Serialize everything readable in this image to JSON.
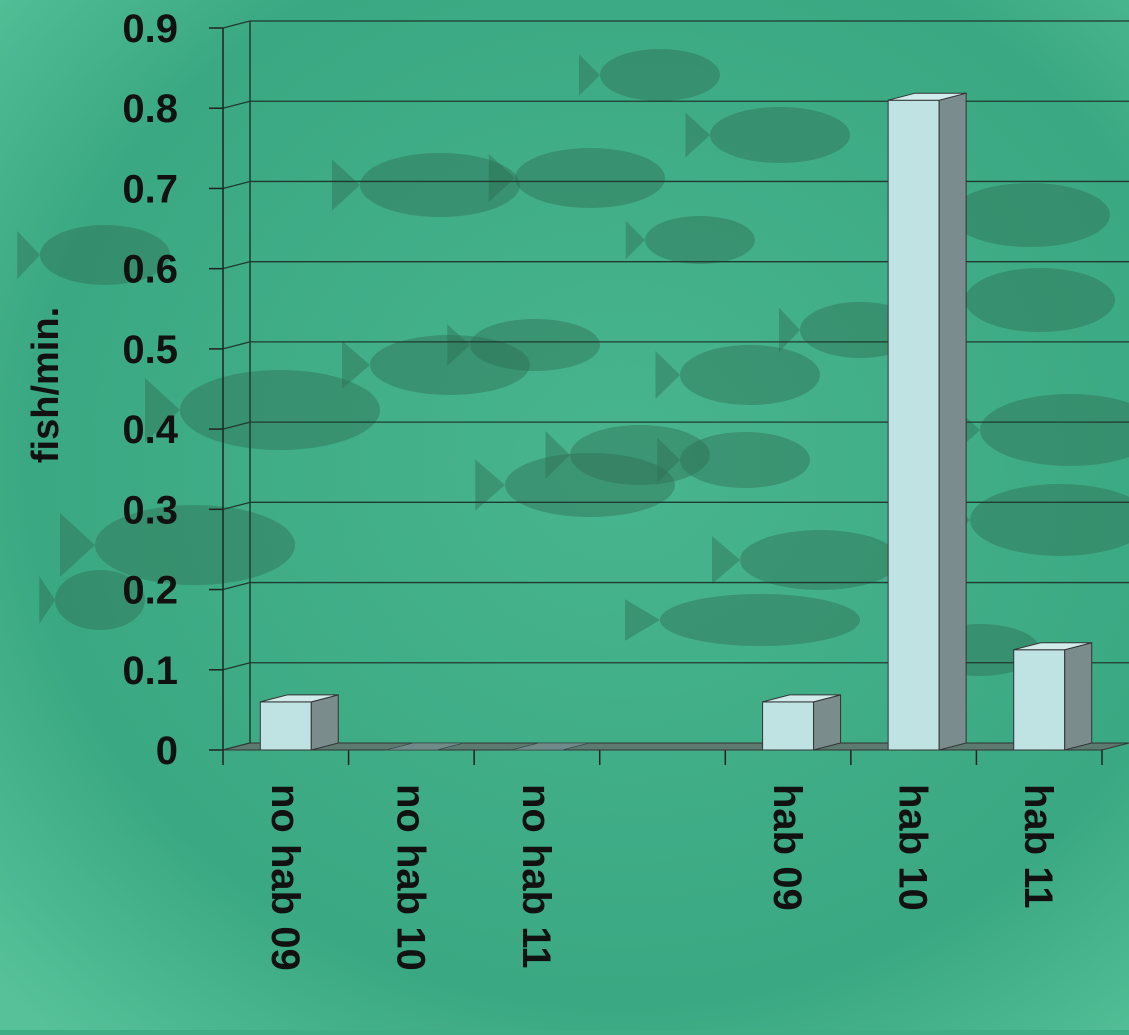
{
  "colors": {
    "background": "#3fae86",
    "bar_front": "#bfe3e3",
    "bar_side": "#7a8c8c",
    "bar_top": "#d2ecec",
    "gridline": "#1f3a30"
  },
  "chart_data": {
    "type": "bar",
    "style": "3d-column",
    "ylabel": "fish/min.",
    "ylim": [
      0,
      0.9
    ],
    "yticks": [
      "0",
      "0.1",
      "0.2",
      "0.3",
      "0.4",
      "0.5",
      "0.6",
      "0.7",
      "0.8",
      "0.9"
    ],
    "grid": true,
    "categories": [
      "no hab 09",
      "no hab 10",
      "no hab 11",
      "",
      "hab 09",
      "hab 10",
      "hab 11"
    ],
    "values": [
      0.06,
      0,
      0,
      0,
      0.06,
      0.81,
      0.125
    ]
  }
}
